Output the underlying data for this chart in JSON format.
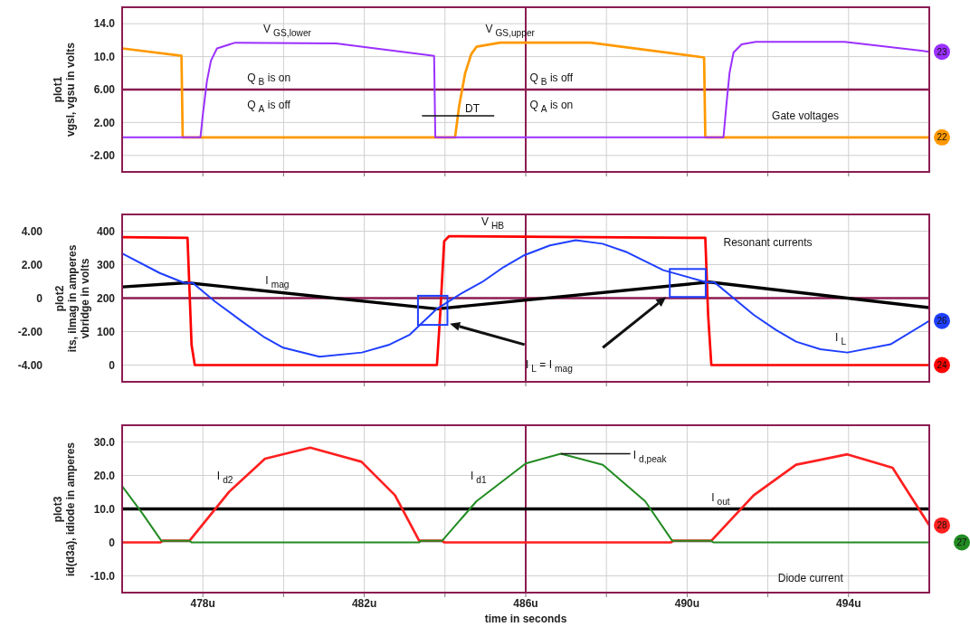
{
  "chart_data": [
    {
      "type": "line",
      "ylabel": "plot1\nvgsl, vgsu in volts",
      "xlim": [
        476,
        496
      ],
      "ylim": [
        -4,
        16
      ],
      "xticks": [
        478,
        480,
        482,
        484,
        486,
        488,
        490,
        492,
        494
      ],
      "yticks": [
        {
          "value": -2,
          "label": "-2.00"
        },
        {
          "value": 2,
          "label": "2.00"
        },
        {
          "value": 6,
          "label": "6.00"
        },
        {
          "value": 10,
          "label": "10.0"
        },
        {
          "value": 14,
          "label": "14.0"
        }
      ],
      "tick_labels": "y",
      "grid": true,
      "ref_lines": [
        {
          "axis": "y",
          "value": 6,
          "color": "#8b1c52"
        },
        {
          "axis": "x",
          "value": 486,
          "color": "#8b1c52"
        }
      ],
      "series": [
        {
          "name": "22",
          "color": "#ff9900",
          "x": [
            476,
            477.47,
            477.5,
            484.25,
            484.35,
            484.5,
            484.65,
            484.78,
            485.37,
            487.6,
            490.42,
            490.45,
            496
          ],
          "values": [
            11.0,
            10.1,
            0.2,
            0.2,
            4,
            8,
            10.3,
            11.2,
            11.7,
            11.7,
            9.9,
            0.2,
            0.2
          ]
        },
        {
          "name": "23",
          "color": "#9b30ff",
          "x": [
            476,
            477.94,
            478.0,
            478.1,
            478.2,
            478.35,
            478.8,
            481.3,
            483.73,
            483.76,
            490.9,
            490.97,
            491.05,
            491.15,
            491.35,
            491.7,
            493.9,
            496
          ],
          "values": [
            0.2,
            0.2,
            3,
            7,
            9.5,
            11,
            11.7,
            11.6,
            10.1,
            0.2,
            0.2,
            4,
            8,
            10.5,
            11.5,
            11.8,
            11.8,
            10.6
          ]
        }
      ],
      "annotations": [
        "DT",
        "V$_{GS,lower}$",
        "V$_{GS,upper}$",
        "Q$_{B}$ is on",
        "Q$_{A}$ is off",
        "Q$_{B}$ is off",
        "Q$_{A}$ is on",
        "Gate voltages"
      ]
    },
    {
      "type": "line",
      "ylabel": "plot2\nits, ilmag in amperes",
      "y2label": "vbridge in volts",
      "xlim": [
        476,
        496
      ],
      "ylim": [
        -5,
        5
      ],
      "y2lim": [
        -50,
        450
      ],
      "xticks": [
        478,
        480,
        482,
        484,
        486,
        488,
        490,
        492,
        494
      ],
      "yticks": [
        {
          "value": -4,
          "label": "-4.00"
        },
        {
          "value": -2,
          "label": "-2.00"
        },
        0,
        {
          "value": 2,
          "label": "2.00"
        },
        {
          "value": 4,
          "label": "4.00"
        }
      ],
      "y2ticks": [
        0,
        100,
        200,
        300,
        400
      ],
      "tick_labels": "y",
      "grid": true,
      "ref_lines": [
        {
          "axis": "y",
          "value": 0,
          "color": "#8b1c52"
        },
        {
          "axis": "x",
          "value": 486,
          "color": "#8b1c52"
        }
      ],
      "series": [
        {
          "color": "#000000",
          "x": [
            476,
            477.6,
            483.8,
            490.55,
            496
          ],
          "values": [
            0.67,
            0.92,
            -0.64,
            0.96,
            -0.57
          ]
        },
        {
          "name": "24",
          "color": "#ff0000",
          "axis": "y2",
          "x": [
            476,
            477.62,
            477.72,
            477.8,
            483.8,
            483.88,
            483.98,
            484.1,
            490.45,
            490.52,
            490.6,
            496
          ],
          "values": [
            382,
            380,
            60,
            0,
            0,
            150,
            370,
            385,
            380,
            150,
            0,
            0
          ]
        },
        {
          "name": "26",
          "color": "#1f3fff",
          "x": [
            476,
            476.93,
            477.53,
            477.75,
            478.3,
            478.95,
            479.5,
            479.99,
            480.89,
            481.94,
            482.6,
            483.13,
            483.8,
            484.35,
            484.92,
            485.45,
            485.97,
            486.6,
            487.24,
            487.9,
            488.51,
            489.41,
            490.46,
            490.68,
            491.15,
            491.65,
            492.2,
            492.7,
            493.3,
            493.97,
            495.04,
            496
          ],
          "values": [
            2.67,
            1.5,
            0.92,
            0.9,
            -0.2,
            -1.36,
            -2.3,
            -2.96,
            -3.5,
            -3.25,
            -2.8,
            -2.18,
            -0.64,
            0.2,
            0.96,
            1.85,
            2.57,
            3.15,
            3.46,
            3.25,
            2.74,
            1.67,
            0.96,
            0.94,
            0.0,
            -1.0,
            -1.9,
            -2.6,
            -3.05,
            -3.25,
            -2.76,
            -1.36
          ]
        }
      ],
      "annotations": [
        "V$_{HB}$",
        "I$_{mag}$",
        "I$_{L}$",
        "I$_{L}$ = I$_{mag}$",
        "Resonant currents"
      ]
    },
    {
      "type": "line",
      "ylabel": "plot3\nid(d3a), idiode in amperes",
      "xlabel": "time in seconds",
      "xlim": [
        476,
        496
      ],
      "ylim": [
        -15,
        35
      ],
      "xticks": [
        {
          "value": 478,
          "label": "478u"
        },
        {
          "value": 480,
          "label": null
        },
        {
          "value": 482,
          "label": "482u"
        },
        {
          "value": 484,
          "label": null
        },
        {
          "value": 486,
          "label": "486u"
        },
        {
          "value": 488,
          "label": null
        },
        {
          "value": 490,
          "label": "490u"
        },
        {
          "value": 492,
          "label": null
        },
        {
          "value": 494,
          "label": "494u"
        }
      ],
      "yticks": [
        {
          "value": -10,
          "label": "-10.0"
        },
        0,
        {
          "value": 10,
          "label": "10.0"
        },
        {
          "value": 20,
          "label": "20.0"
        },
        {
          "value": 30,
          "label": "30.0"
        }
      ],
      "grid": true,
      "ref_lines": [
        {
          "axis": "x",
          "value": 486,
          "color": "#8b1c52"
        }
      ],
      "series": [
        {
          "color": "#000000",
          "x": [
            476,
            496
          ],
          "values": [
            10,
            10
          ]
        },
        {
          "name": "28",
          "color": "#ff2020",
          "x": [
            476,
            476.95,
            477.0,
            477.67,
            478.65,
            479.54,
            480.66,
            481.93,
            482.76,
            483.36,
            483.93,
            483.98,
            489.6,
            489.65,
            490.6,
            491.65,
            492.7,
            493.97,
            495.09,
            496
          ],
          "values": [
            0,
            0,
            0.5,
            0.5,
            15.1,
            25.0,
            28.3,
            24.1,
            14.1,
            0.5,
            0.5,
            0,
            0,
            0.5,
            0.5,
            14.1,
            23.2,
            26.3,
            22.3,
            5.1
          ]
        },
        {
          "name": "27",
          "color": "#228b22",
          "x": [
            476,
            476.5,
            476.97,
            477.67,
            477.72,
            483.36,
            483.4,
            483.93,
            484.78,
            486.0,
            486.87,
            487.91,
            488.96,
            489.63,
            490.6,
            490.65,
            496
          ],
          "values": [
            16.8,
            8.7,
            0.5,
            0.5,
            0,
            0,
            0.5,
            0.5,
            12.3,
            23.6,
            26.5,
            23.2,
            12.3,
            0.5,
            0.5,
            0,
            0
          ]
        }
      ],
      "annotations": [
        "I$_{d2}$",
        "I$_{d1}$",
        {
          "text": "I$_{d,peak}$",
          "x": 486.87,
          "y": 26.5
        },
        "I$_{out}$",
        "Diode current"
      ]
    }
  ]
}
